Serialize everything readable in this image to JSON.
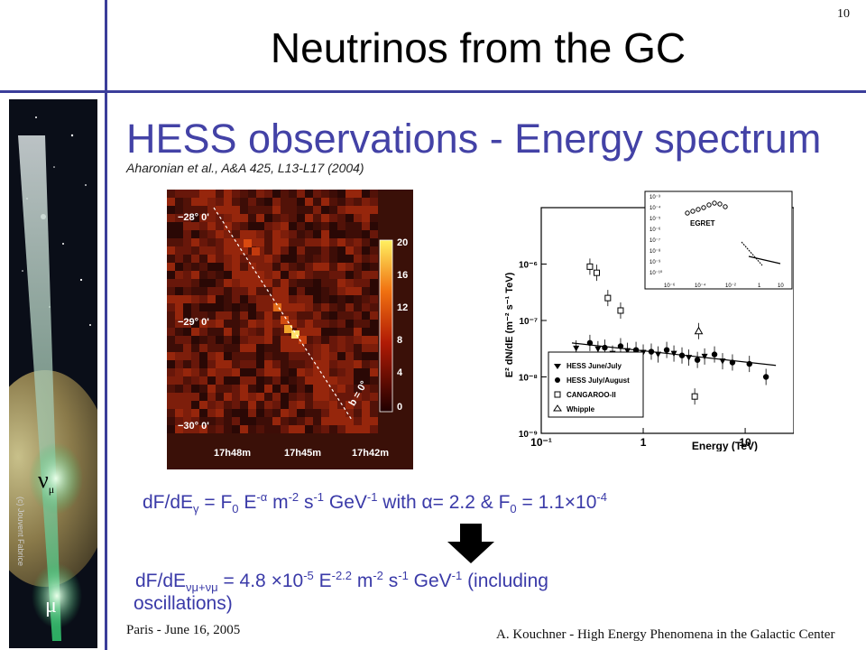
{
  "slide": {
    "number": "10",
    "title": "Neutrinos from the GC",
    "subtitle": "HESS observations  -  Energy spectrum",
    "reference": "Aharonian et al., A&A 425, L13-L17 (2004)"
  },
  "sky_map": {
    "dec_labels": [
      "−28° 0'",
      "−29° 0'",
      "−30° 0'"
    ],
    "ra_labels": [
      "17h48m",
      "17h45m",
      "17h42m"
    ],
    "colorbar_ticks": [
      "20",
      "16",
      "12",
      "8",
      "4",
      "0"
    ],
    "plane_label": "b = 0°"
  },
  "chart_data": {
    "type": "scatter",
    "xlabel": "Energy (TeV)",
    "ylabel": "E² dN/dE  (m⁻² s⁻¹ TeV)",
    "xscale": "log",
    "yscale": "log",
    "xlim": [
      0.1,
      30
    ],
    "ylim": [
      1e-09,
      1e-05
    ],
    "x_ticks": [
      "10⁻¹",
      "1",
      "10"
    ],
    "y_ticks": [
      "10⁻⁹",
      "10⁻⁸",
      "10⁻⁷",
      "10⁻⁶"
    ],
    "series": [
      {
        "name": "HESS June/July",
        "marker": "triangle-down",
        "x": [
          0.22,
          0.36,
          0.5,
          0.7,
          1.0,
          1.4,
          2.0,
          2.8,
          4.0,
          6.0
        ],
        "y": [
          3.2e-08,
          3.1e-08,
          2.6e-08,
          2.9e-08,
          2.7e-08,
          2.5e-08,
          2.6e-08,
          2.2e-08,
          2.3e-08,
          1.9e-08
        ]
      },
      {
        "name": "HESS July/August",
        "marker": "circle",
        "x": [
          0.3,
          0.42,
          0.6,
          0.85,
          1.2,
          1.7,
          2.4,
          3.4,
          5.0,
          7.5,
          11.0,
          16.0
        ],
        "y": [
          4e-08,
          3.3e-08,
          3.5e-08,
          3e-08,
          2.8e-08,
          3e-08,
          2.4e-08,
          2e-08,
          2.5e-08,
          1.8e-08,
          1.7e-08,
          1e-08
        ]
      },
      {
        "name": "CANGAROO-II",
        "marker": "square-open",
        "x": [
          0.3,
          0.35,
          0.45,
          0.6,
          3.2
        ],
        "y": [
          9e-07,
          7e-07,
          2.5e-07,
          1.5e-07,
          4.5e-09
        ]
      },
      {
        "name": "Whipple",
        "marker": "triangle-open",
        "x": [
          3.5
        ],
        "y": [
          6.5e-08
        ]
      }
    ],
    "fit_line": {
      "x": [
        0.2,
        20
      ],
      "y": [
        4e-08,
        1.6e-08
      ]
    },
    "inset": {
      "label": "EGRET",
      "x_ticks": [
        "10⁻⁶",
        "10⁻⁴",
        "10⁻²",
        "1",
        "10"
      ],
      "y_ticks": [
        "10⁻³",
        "10⁻⁴",
        "10⁻⁵",
        "10⁻⁶",
        "10⁻⁷",
        "10⁻⁸",
        "10⁻⁹",
        "10⁻¹⁰"
      ]
    }
  },
  "equations": {
    "eq1": {
      "lhs": "dF/dE",
      "lhs_sub": "γ",
      "eq": " = F",
      "f_sub": "0",
      "e": " E",
      "e_sup": "-α",
      "units_m": "  m",
      "m_sup": "-2",
      "units_s": " s",
      "s_sup": "-1",
      "units_g": " GeV",
      "g_sup": "-1",
      "with": "   with α= 2.2    &    F",
      "f0_sub": "0",
      "f0_val": " = 1.1×10",
      "f0_sup": "-4"
    },
    "eq2": {
      "lhs": "dF/dE",
      "lhs_sub": "νμ+νμ",
      "val": " = 4.8 ×10",
      "val_sup": "-5",
      "e": " E",
      "e_sup": "-2.2",
      "units_m": "  m",
      "m_sup": "-2",
      "units_s": " s",
      "s_sup": "-1",
      "units_g": " GeV",
      "g_sup": "-1",
      "note": "    (including",
      "note2": "oscillations)"
    }
  },
  "sidebar": {
    "credit": "(c) Jouvent Fabrice",
    "nu_label": "ν",
    "nu_sub": "μ",
    "mu_label": "μ"
  },
  "footer": {
    "left": "Paris - June 16, 2005",
    "right": "A. Kouchner - High Energy Phenomena in the Galactic Center"
  }
}
